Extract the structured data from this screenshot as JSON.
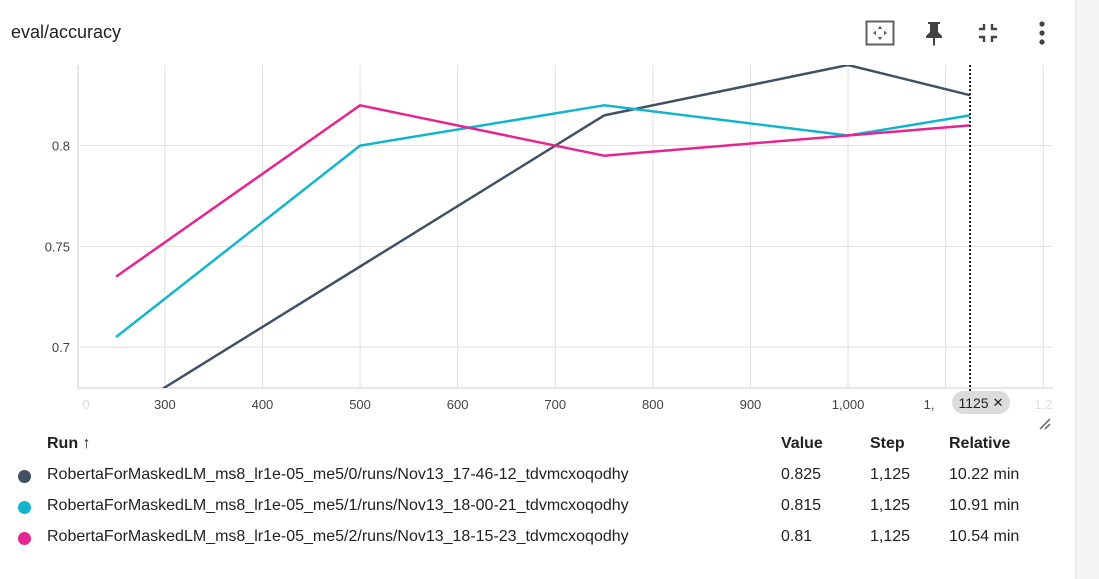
{
  "card": {
    "title": "eval/accuracy",
    "toolbar": [
      {
        "icon": "fit-domain-icon",
        "label": "Fit domain to data"
      },
      {
        "icon": "pin-icon",
        "label": "Pin card"
      },
      {
        "icon": "collapse-icon",
        "label": "Exit full size"
      },
      {
        "icon": "more-vert-icon",
        "label": "More"
      }
    ]
  },
  "chart_data": {
    "type": "line",
    "title": "eval/accuracy",
    "xlabel": "",
    "ylabel": "",
    "x_ticks": [
      "300",
      "400",
      "500",
      "600",
      "700",
      "800",
      "900",
      "1,000"
    ],
    "x_ticks_faded": [
      "0",
      "1,2"
    ],
    "x_tick_partial": "1,",
    "y_ticks": [
      "0.7",
      "0.75",
      "0.8"
    ],
    "xlim": [
      211,
      1210
    ],
    "ylim": [
      0.6797,
      0.84
    ],
    "grid": true,
    "selected_step": 1125,
    "selected_step_label": "1125",
    "series": [
      {
        "name": "RobertaForMaskedLM_ms8_lr1e-05_me5/0/runs/Nov13_17-46-12_tdvmcxoqodhy",
        "color": "#425066",
        "points": [
          [
            250,
            0.665
          ],
          [
            500,
            0.74
          ],
          [
            750,
            0.815
          ],
          [
            1000,
            0.84
          ],
          [
            1125,
            0.825
          ]
        ]
      },
      {
        "name": "RobertaForMaskedLM_ms8_lr1e-05_me5/1/runs/Nov13_18-00-21_tdvmcxoqodhy",
        "color": "#12b5cb",
        "points": [
          [
            250,
            0.705
          ],
          [
            500,
            0.8
          ],
          [
            750,
            0.82
          ],
          [
            1000,
            0.805
          ],
          [
            1125,
            0.815
          ]
        ]
      },
      {
        "name": "RobertaForMaskedLM_ms8_lr1e-05_me5/2/runs/Nov13_18-15-23_tdvmcxoqodhy",
        "color": "#e52592",
        "points": [
          [
            250,
            0.735
          ],
          [
            500,
            0.82
          ],
          [
            750,
            0.795
          ],
          [
            1000,
            0.805
          ],
          [
            1125,
            0.81
          ]
        ]
      }
    ]
  },
  "table": {
    "headers": {
      "run": "Run ↑",
      "value": "Value",
      "step": "Step",
      "relative": "Relative"
    },
    "rows": [
      {
        "color": "#425066",
        "run": "RobertaForMaskedLM_ms8_lr1e-05_me5/0/runs/Nov13_17-46-12_tdvmcxoqodhy",
        "value": "0.825",
        "step": "1,125",
        "relative": "10.22 min"
      },
      {
        "color": "#12b5cb",
        "run": "RobertaForMaskedLM_ms8_lr1e-05_me5/1/runs/Nov13_18-00-21_tdvmcxoqodhy",
        "value": "0.815",
        "step": "1,125",
        "relative": "10.91 min"
      },
      {
        "color": "#e52592",
        "run": "RobertaForMaskedLM_ms8_lr1e-05_me5/2/runs/Nov13_18-15-23_tdvmcxoqodhy",
        "value": "0.81",
        "step": "1,125",
        "relative": "10.54 min"
      }
    ]
  }
}
